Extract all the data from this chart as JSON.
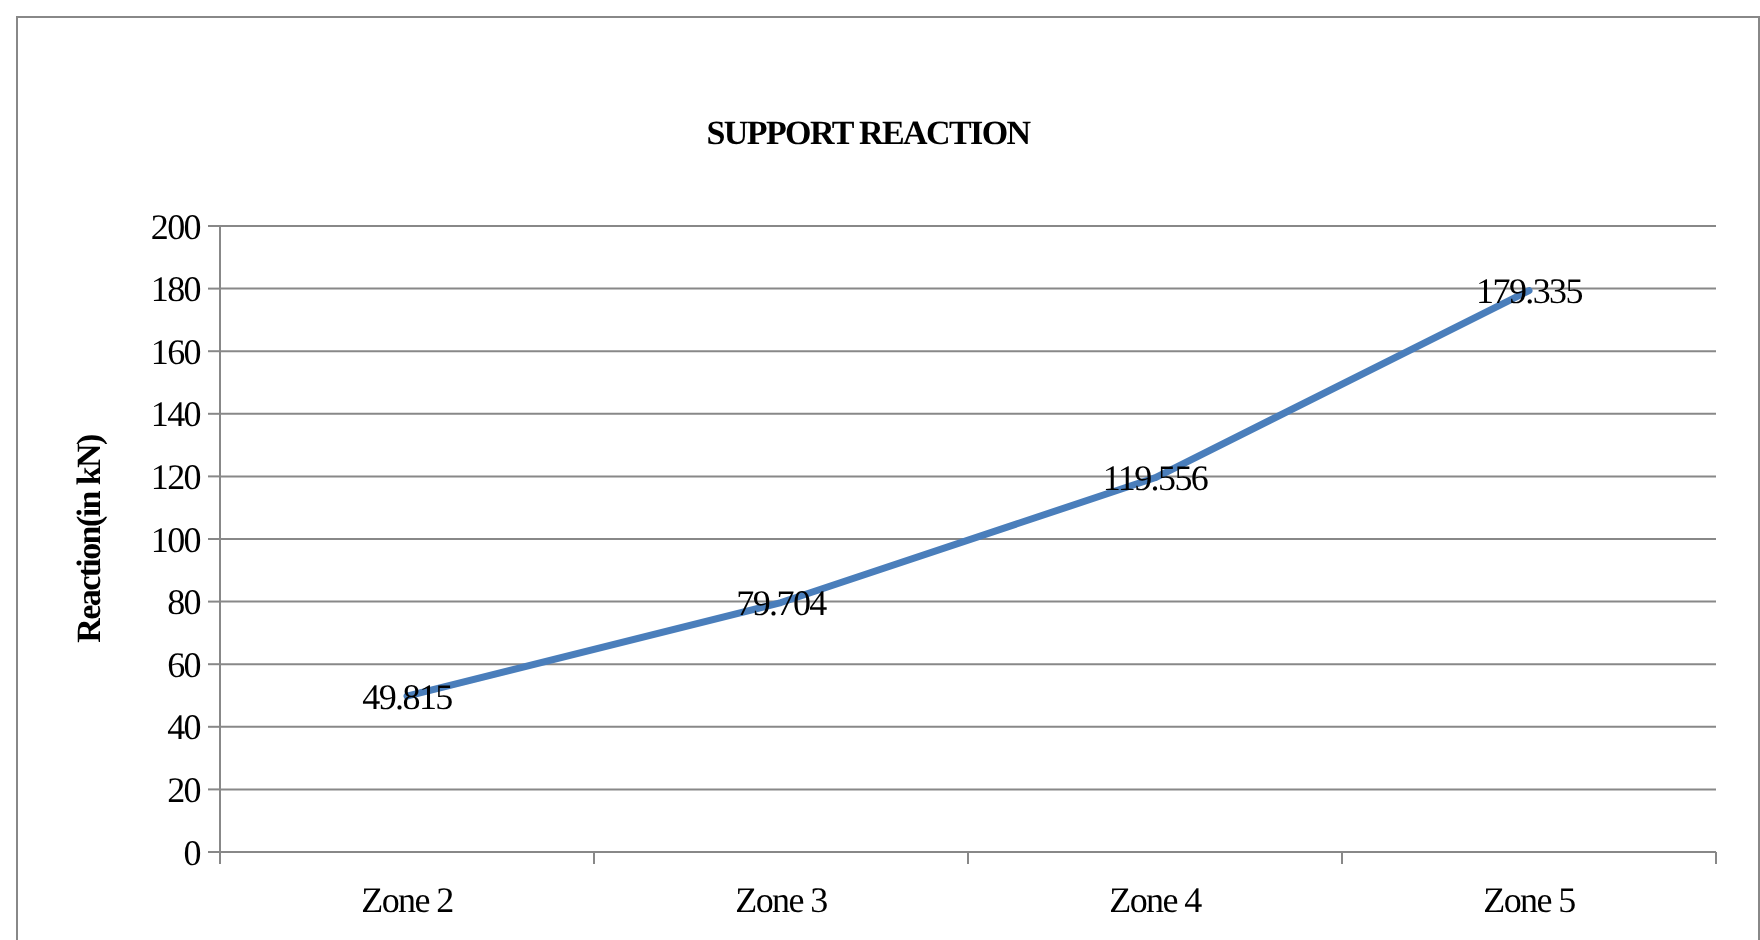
{
  "chart_data": {
    "type": "line",
    "title": "SUPPORT REACTION",
    "ylabel": "Reaction(in kN)",
    "categories": [
      "Zone 2",
      "Zone 3",
      "Zone 4",
      "Zone 5"
    ],
    "series": [
      {
        "color": "#4a7ebb",
        "values": [
          49.815,
          79.704,
          119.556,
          179.335
        ]
      }
    ],
    "ylim": [
      0,
      200
    ],
    "yticks": [
      0,
      20,
      40,
      60,
      80,
      100,
      120,
      140,
      160,
      180,
      200
    ],
    "grid": "y",
    "data_labels": true,
    "marker": "none",
    "line_style": "solid"
  }
}
